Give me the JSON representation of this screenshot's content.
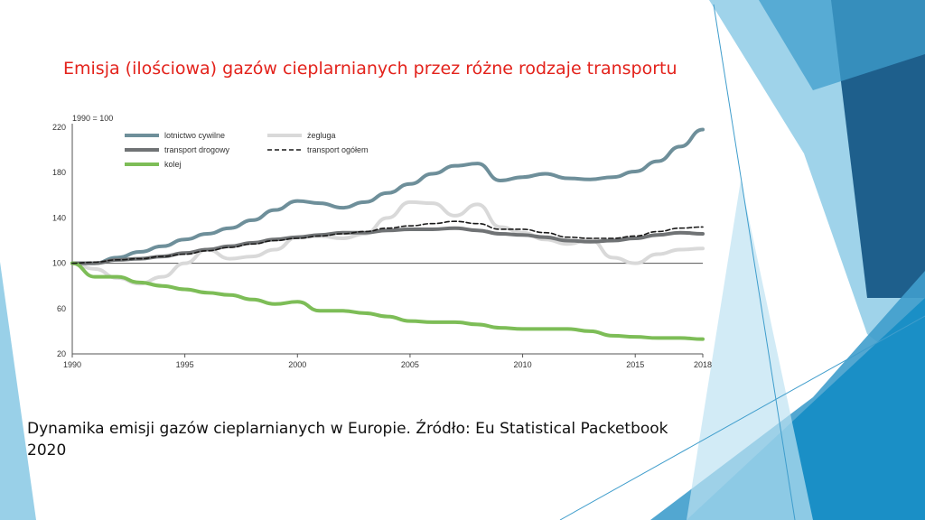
{
  "slide": {
    "title": "Emisja (ilościowa) gazów cieplarnianych przez różne rodzaje transportu",
    "caption": "Dynamika emisji gazów cieplarnianych w Europie. Źródło: Eu Statistical Packetbook 2020"
  },
  "colors": {
    "title": "#e3221b",
    "decor_light": "#8ecbe6",
    "decor_mid": "#3f9dcc",
    "decor_dark": "#1e5f8c"
  },
  "chart_data": {
    "type": "line",
    "unit_label": "1990 = 100",
    "ylim": [
      20,
      220
    ],
    "xlim": [
      1990,
      2018
    ],
    "yticks": [
      220,
      180,
      140,
      100,
      60,
      20
    ],
    "xticks": [
      1990,
      1995,
      2000,
      2005,
      2010,
      2015,
      2018
    ],
    "reference_line": 100,
    "legend_position": "top-left",
    "series": [
      {
        "name": "lotnictwo cywilne",
        "color": "#6e8f9a",
        "width": 4,
        "dash": "",
        "x": [
          1990,
          1991,
          1992,
          1993,
          1994,
          1995,
          1996,
          1997,
          1998,
          1999,
          2000,
          2001,
          2002,
          2003,
          2004,
          2005,
          2006,
          2007,
          2008,
          2009,
          2010,
          2011,
          2012,
          2013,
          2014,
          2015,
          2016,
          2017,
          2018
        ],
        "y": [
          100,
          100,
          105,
          110,
          115,
          121,
          126,
          131,
          138,
          147,
          155,
          153,
          149,
          154,
          162,
          170,
          179,
          186,
          188,
          173,
          176,
          179,
          175,
          174,
          176,
          181,
          190,
          203,
          218
        ]
      },
      {
        "name": "transport drogowy",
        "color": "#707375",
        "width": 4,
        "dash": "",
        "x": [
          1990,
          1991,
          1992,
          1993,
          1994,
          1995,
          1996,
          1997,
          1998,
          1999,
          2000,
          2001,
          2002,
          2003,
          2004,
          2005,
          2006,
          2007,
          2008,
          2009,
          2010,
          2011,
          2012,
          2013,
          2014,
          2015,
          2016,
          2017,
          2018
        ],
        "y": [
          100,
          100,
          103,
          104,
          106,
          109,
          112,
          115,
          118,
          121,
          123,
          125,
          127,
          127,
          129,
          130,
          130,
          131,
          129,
          126,
          125,
          123,
          120,
          119,
          120,
          122,
          125,
          127,
          126
        ]
      },
      {
        "name": "kolej",
        "color": "#7dbd57",
        "width": 4,
        "dash": "",
        "x": [
          1990,
          1991,
          1992,
          1993,
          1994,
          1995,
          1996,
          1997,
          1998,
          1999,
          2000,
          2001,
          2002,
          2003,
          2004,
          2005,
          2006,
          2007,
          2008,
          2009,
          2010,
          2011,
          2012,
          2013,
          2014,
          2015,
          2016,
          2017,
          2018
        ],
        "y": [
          100,
          88,
          88,
          83,
          80,
          77,
          74,
          72,
          68,
          64,
          66,
          58,
          58,
          56,
          53,
          49,
          48,
          48,
          46,
          43,
          42,
          42,
          42,
          40,
          36,
          35,
          34,
          34,
          33
        ]
      },
      {
        "name": "żegluga",
        "color": "#d9d9d9",
        "width": 4,
        "dash": "",
        "x": [
          1990,
          1991,
          1992,
          1993,
          1994,
          1995,
          1996,
          1997,
          1998,
          1999,
          2000,
          2001,
          2002,
          2003,
          2004,
          2005,
          2006,
          2007,
          2008,
          2009,
          2010,
          2011,
          2012,
          2013,
          2014,
          2015,
          2016,
          2017,
          2018
        ],
        "y": [
          100,
          95,
          87,
          82,
          88,
          100,
          112,
          104,
          106,
          112,
          123,
          124,
          122,
          126,
          140,
          154,
          153,
          142,
          152,
          132,
          127,
          121,
          117,
          121,
          105,
          100,
          108,
          112,
          113
        ]
      },
      {
        "name": "transport ogółem",
        "color": "#1a1a1a",
        "width": 1.6,
        "dash": "5 3",
        "x": [
          1990,
          1991,
          1992,
          1993,
          1994,
          1995,
          1996,
          1997,
          1998,
          1999,
          2000,
          2001,
          2002,
          2003,
          2004,
          2005,
          2006,
          2007,
          2008,
          2009,
          2010,
          2011,
          2012,
          2013,
          2014,
          2015,
          2016,
          2017,
          2018
        ],
        "y": [
          100,
          101,
          103,
          104,
          106,
          108,
          111,
          114,
          117,
          120,
          122,
          124,
          126,
          128,
          131,
          133,
          135,
          137,
          135,
          130,
          130,
          127,
          123,
          122,
          122,
          124,
          128,
          131,
          132
        ]
      }
    ]
  }
}
